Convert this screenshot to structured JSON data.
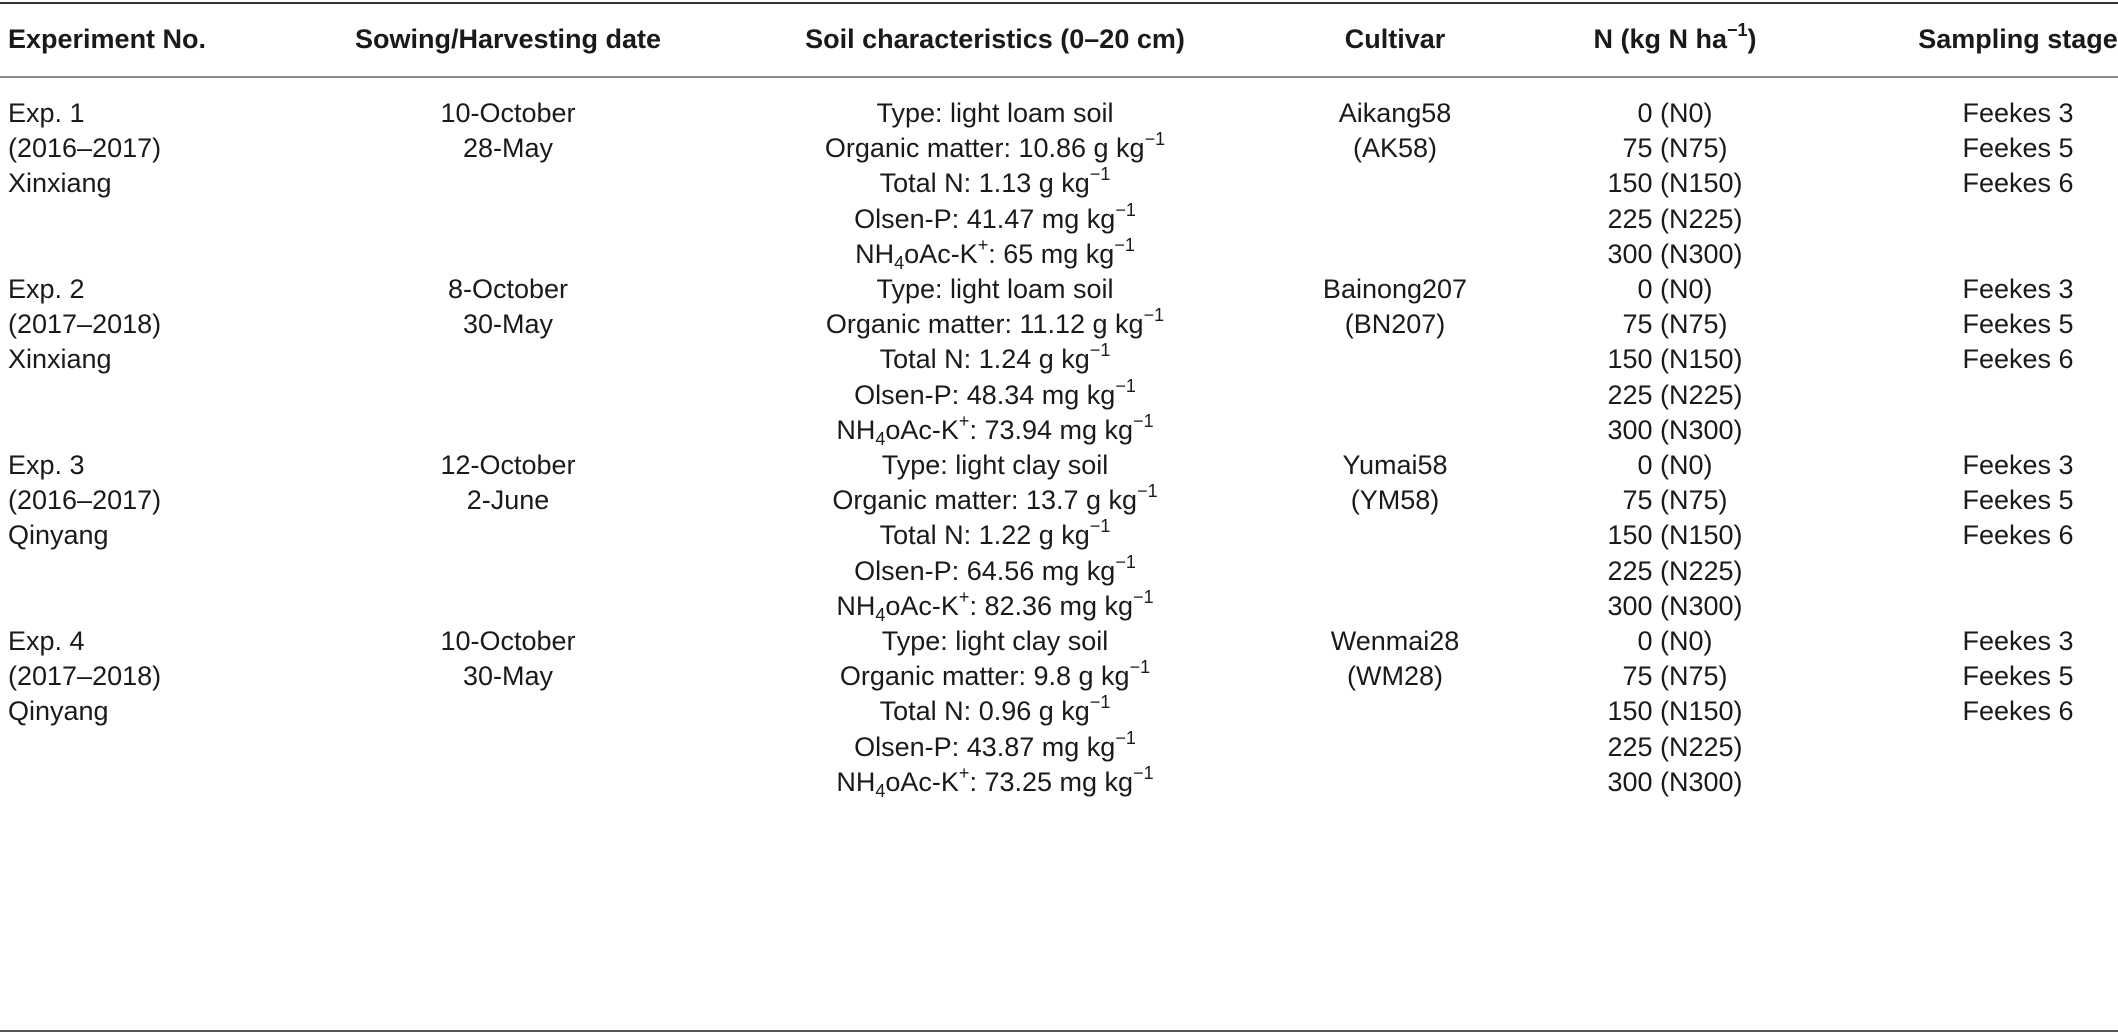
{
  "headers": {
    "experiment": "Experiment No.",
    "sowing": "Sowing/Harvesting date",
    "soil": "Soil characteristics (0–20 cm)",
    "cultivar": "Cultivar",
    "n_prefix": "N (kg N ha",
    "n_exp": "−1",
    "n_suffix": ")",
    "sampling": "Sampling stage"
  },
  "unit_prefix": "kg",
  "unit_exp": "−1",
  "soil_labels": {
    "type": "Type: ",
    "organic": "Organic matter: ",
    "total_n": "Total N: ",
    "olsen": "Olsen-P: ",
    "nh4_a": "NH",
    "nh4_sub": "4",
    "nh4_b": "oAc-K",
    "nh4_sup": "+",
    "nh4_c": ": "
  },
  "experiments": [
    {
      "exp": [
        "Exp. 1",
        "(2016–2017)",
        "Xinxiang"
      ],
      "dates": [
        "10-October",
        "28-May"
      ],
      "soil": {
        "type": "light loam soil",
        "organic": "10.86 g",
        "total_n": "1.13 g",
        "olsen": "41.47 mg",
        "nh4": "65 mg"
      },
      "cultivar": [
        "Aikang58",
        "(AK58)"
      ],
      "n": [
        "0 (N0)",
        "75 (N75)",
        "150 (N150)",
        "225 (N225)",
        "300 (N300)"
      ],
      "stages": [
        "Feekes 3",
        "Feekes 5",
        "Feekes 6"
      ]
    },
    {
      "exp": [
        "Exp. 2",
        "(2017–2018)",
        "Xinxiang"
      ],
      "dates": [
        "8-October",
        "30-May"
      ],
      "soil": {
        "type": "light loam soil",
        "organic": "11.12 g",
        "total_n": "1.24 g",
        "olsen": "48.34 mg",
        "nh4": "73.94 mg"
      },
      "cultivar": [
        "Bainong207",
        "(BN207)"
      ],
      "n": [
        "0 (N0)",
        "75 (N75)",
        "150 (N150)",
        "225 (N225)",
        "300 (N300)"
      ],
      "stages": [
        "Feekes 3",
        "Feekes 5",
        "Feekes 6"
      ]
    },
    {
      "exp": [
        "Exp. 3",
        "(2016–2017)",
        "Qinyang"
      ],
      "dates": [
        "12-October",
        "2-June"
      ],
      "soil": {
        "type": "light clay soil",
        "organic": "13.7 g",
        "total_n": "1.22 g",
        "olsen": "64.56 mg",
        "nh4": "82.36 mg"
      },
      "cultivar": [
        "Yumai58",
        "(YM58)"
      ],
      "n": [
        "0 (N0)",
        "75 (N75)",
        "150 (N150)",
        "225 (N225)",
        "300 (N300)"
      ],
      "stages": [
        "Feekes 3",
        "Feekes 5",
        "Feekes 6"
      ]
    },
    {
      "exp": [
        "Exp. 4",
        "(2017–2018)",
        "Qinyang"
      ],
      "dates": [
        "10-October",
        "30-May"
      ],
      "soil": {
        "type": "light clay soil",
        "organic": "9.8 g",
        "total_n": "0.96 g",
        "olsen": "43.87 mg",
        "nh4": "73.25 mg"
      },
      "cultivar": [
        "Wenmai28",
        "(WM28)"
      ],
      "n": [
        "0 (N0)",
        "75 (N75)",
        "150 (N150)",
        "225 (N225)",
        "300 (N300)"
      ],
      "stages": [
        "Feekes 3",
        "Feekes 5",
        "Feekes 6"
      ]
    }
  ]
}
